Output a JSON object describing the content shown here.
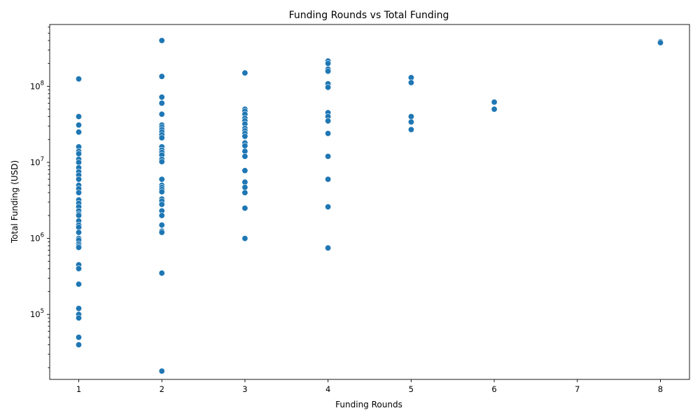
{
  "chart_data": {
    "type": "scatter",
    "title": "Funding Rounds vs Total Funding",
    "xlabel": "Funding Rounds",
    "ylabel": "Total Funding (USD)",
    "xlim": [
      0.65,
      8.35
    ],
    "ylim": [
      14000,
      650000000
    ],
    "yscale": "log",
    "grid": false,
    "x_ticks": [
      1,
      2,
      3,
      4,
      5,
      6,
      7,
      8
    ],
    "y_ticks": [
      {
        "value": 100000,
        "base": "10",
        "exp": "5"
      },
      {
        "value": 1000000,
        "base": "10",
        "exp": "6"
      },
      {
        "value": 10000000,
        "base": "10",
        "exp": "7"
      },
      {
        "value": 100000000,
        "base": "10",
        "exp": "8"
      }
    ],
    "marker_color": "#1f77b4",
    "points": [
      {
        "x": 1,
        "y": 125000000
      },
      {
        "x": 1,
        "y": 40000000
      },
      {
        "x": 1,
        "y": 31000000
      },
      {
        "x": 1,
        "y": 25000000
      },
      {
        "x": 1,
        "y": 16000000
      },
      {
        "x": 1,
        "y": 14000000
      },
      {
        "x": 1,
        "y": 13000000
      },
      {
        "x": 1,
        "y": 11000000
      },
      {
        "x": 1,
        "y": 10000000
      },
      {
        "x": 1,
        "y": 8500000
      },
      {
        "x": 1,
        "y": 7500000
      },
      {
        "x": 1,
        "y": 6800000
      },
      {
        "x": 1,
        "y": 6000000
      },
      {
        "x": 1,
        "y": 5000000
      },
      {
        "x": 1,
        "y": 4500000
      },
      {
        "x": 1,
        "y": 4000000
      },
      {
        "x": 1,
        "y": 3200000
      },
      {
        "x": 1,
        "y": 2900000
      },
      {
        "x": 1,
        "y": 2600000
      },
      {
        "x": 1,
        "y": 2300000
      },
      {
        "x": 1,
        "y": 2100000
      },
      {
        "x": 1,
        "y": 2000000
      },
      {
        "x": 1,
        "y": 1700000
      },
      {
        "x": 1,
        "y": 1500000
      },
      {
        "x": 1,
        "y": 1400000
      },
      {
        "x": 1,
        "y": 1200000
      },
      {
        "x": 1,
        "y": 1000000
      },
      {
        "x": 1,
        "y": 950000
      },
      {
        "x": 1,
        "y": 850000
      },
      {
        "x": 1,
        "y": 800000
      },
      {
        "x": 1,
        "y": 760000
      },
      {
        "x": 1,
        "y": 450000
      },
      {
        "x": 1,
        "y": 400000
      },
      {
        "x": 1,
        "y": 250000
      },
      {
        "x": 1,
        "y": 120000
      },
      {
        "x": 1,
        "y": 100000
      },
      {
        "x": 1,
        "y": 90000
      },
      {
        "x": 1,
        "y": 50000
      },
      {
        "x": 1,
        "y": 40000
      },
      {
        "x": 2,
        "y": 400000000
      },
      {
        "x": 2,
        "y": 135000000
      },
      {
        "x": 2,
        "y": 72000000
      },
      {
        "x": 2,
        "y": 60000000
      },
      {
        "x": 2,
        "y": 43000000
      },
      {
        "x": 2,
        "y": 31000000
      },
      {
        "x": 2,
        "y": 29000000
      },
      {
        "x": 2,
        "y": 27000000
      },
      {
        "x": 2,
        "y": 25000000
      },
      {
        "x": 2,
        "y": 23000000
      },
      {
        "x": 2,
        "y": 21000000
      },
      {
        "x": 2,
        "y": 16000000
      },
      {
        "x": 2,
        "y": 14500000
      },
      {
        "x": 2,
        "y": 13500000
      },
      {
        "x": 2,
        "y": 12500000
      },
      {
        "x": 2,
        "y": 11000000
      },
      {
        "x": 2,
        "y": 10200000
      },
      {
        "x": 2,
        "y": 6000000
      },
      {
        "x": 2,
        "y": 5000000
      },
      {
        "x": 2,
        "y": 4700000
      },
      {
        "x": 2,
        "y": 4400000
      },
      {
        "x": 2,
        "y": 4100000
      },
      {
        "x": 2,
        "y": 3300000
      },
      {
        "x": 2,
        "y": 3100000
      },
      {
        "x": 2,
        "y": 2800000
      },
      {
        "x": 2,
        "y": 2300000
      },
      {
        "x": 2,
        "y": 2000000
      },
      {
        "x": 2,
        "y": 1500000
      },
      {
        "x": 2,
        "y": 1250000
      },
      {
        "x": 2,
        "y": 1200000
      },
      {
        "x": 2,
        "y": 350000
      },
      {
        "x": 2,
        "y": 18000
      },
      {
        "x": 3,
        "y": 150000000
      },
      {
        "x": 3,
        "y": 50000000
      },
      {
        "x": 3,
        "y": 47000000
      },
      {
        "x": 3,
        "y": 43000000
      },
      {
        "x": 3,
        "y": 38000000
      },
      {
        "x": 3,
        "y": 35000000
      },
      {
        "x": 3,
        "y": 32000000
      },
      {
        "x": 3,
        "y": 28000000
      },
      {
        "x": 3,
        "y": 26000000
      },
      {
        "x": 3,
        "y": 24000000
      },
      {
        "x": 3,
        "y": 22000000
      },
      {
        "x": 3,
        "y": 18000000
      },
      {
        "x": 3,
        "y": 16500000
      },
      {
        "x": 3,
        "y": 14000000
      },
      {
        "x": 3,
        "y": 12000000
      },
      {
        "x": 3,
        "y": 7800000
      },
      {
        "x": 3,
        "y": 5500000
      },
      {
        "x": 3,
        "y": 4700000
      },
      {
        "x": 3,
        "y": 4000000
      },
      {
        "x": 3,
        "y": 2500000
      },
      {
        "x": 3,
        "y": 1000000
      },
      {
        "x": 4,
        "y": 215000000
      },
      {
        "x": 4,
        "y": 200000000
      },
      {
        "x": 4,
        "y": 168000000
      },
      {
        "x": 4,
        "y": 158000000
      },
      {
        "x": 4,
        "y": 108000000
      },
      {
        "x": 4,
        "y": 97000000
      },
      {
        "x": 4,
        "y": 45000000
      },
      {
        "x": 4,
        "y": 40000000
      },
      {
        "x": 4,
        "y": 35000000
      },
      {
        "x": 4,
        "y": 24000000
      },
      {
        "x": 4,
        "y": 12000000
      },
      {
        "x": 4,
        "y": 6000000
      },
      {
        "x": 4,
        "y": 2600000
      },
      {
        "x": 4,
        "y": 750000
      },
      {
        "x": 5,
        "y": 130000000
      },
      {
        "x": 5,
        "y": 112000000
      },
      {
        "x": 5,
        "y": 40000000
      },
      {
        "x": 5,
        "y": 34000000
      },
      {
        "x": 5,
        "y": 27000000
      },
      {
        "x": 6,
        "y": 62000000
      },
      {
        "x": 6,
        "y": 50000000
      },
      {
        "x": 8,
        "y": 385000000
      },
      {
        "x": 8,
        "y": 375000000
      }
    ]
  }
}
